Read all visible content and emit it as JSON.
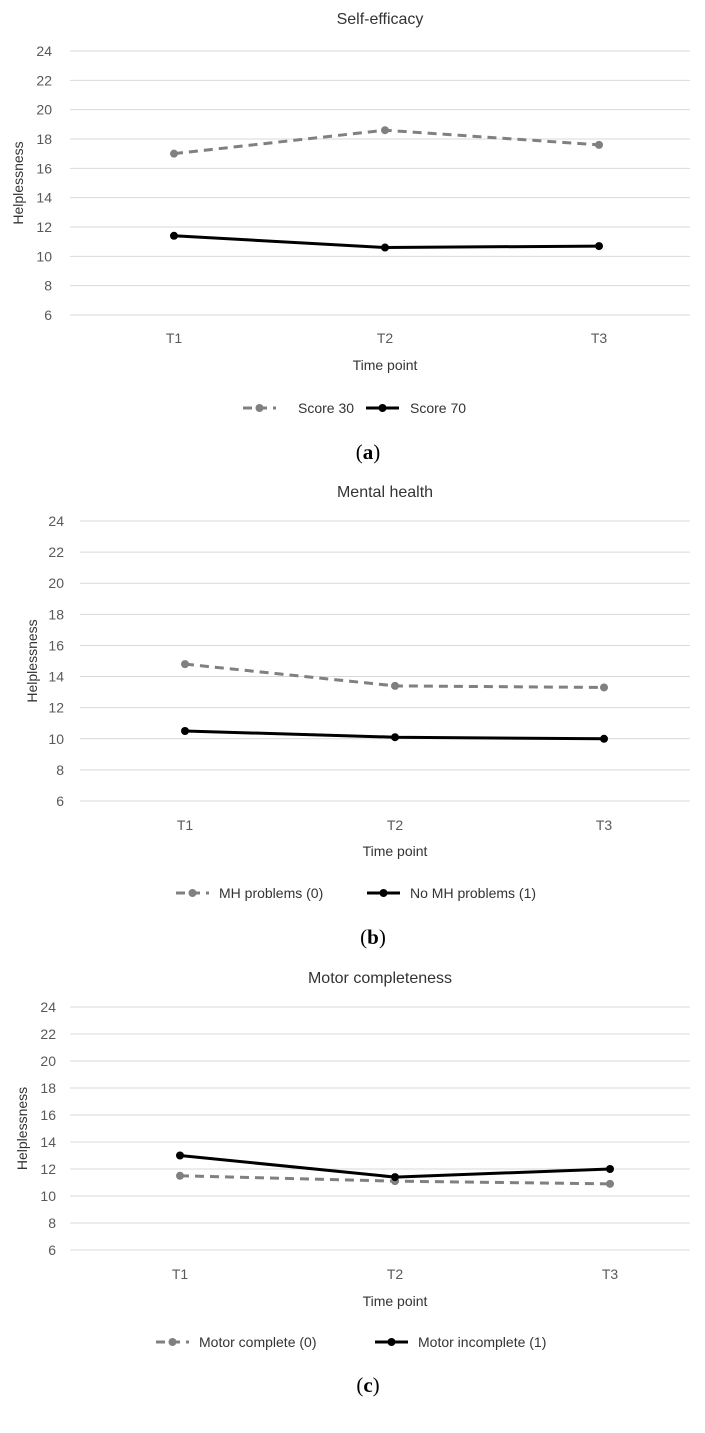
{
  "colors": {
    "dashed_series": "#808080",
    "solid_series": "#000000",
    "grid": "#d9d9d9"
  },
  "chart_data": [
    {
      "type": "line",
      "panel_label": "a",
      "title": "Self-efficacy",
      "xlabel": "Time point",
      "ylabel": "Helplessness",
      "categories": [
        "T1",
        "T2",
        "T3"
      ],
      "ylim": [
        6,
        24
      ],
      "yticks": [
        6,
        8,
        10,
        12,
        14,
        16,
        18,
        20,
        22,
        24
      ],
      "grid": true,
      "legend_position": "bottom",
      "series": [
        {
          "name": "Score 30",
          "style": "dashed",
          "color": "#808080",
          "values": [
            17.0,
            18.6,
            17.6
          ]
        },
        {
          "name": "Score 70",
          "style": "solid",
          "color": "#000000",
          "values": [
            11.4,
            10.6,
            10.7
          ]
        }
      ]
    },
    {
      "type": "line",
      "panel_label": "b",
      "title": "Mental health",
      "xlabel": "Time point",
      "ylabel": "Helplessness",
      "categories": [
        "T1",
        "T2",
        "T3"
      ],
      "ylim": [
        6,
        24
      ],
      "yticks": [
        6,
        8,
        10,
        12,
        14,
        16,
        18,
        20,
        22,
        24
      ],
      "grid": true,
      "legend_position": "bottom",
      "series": [
        {
          "name": "MH problems (0)",
          "style": "dashed",
          "color": "#808080",
          "values": [
            14.8,
            13.4,
            13.3
          ]
        },
        {
          "name": "No MH problems (1)",
          "style": "solid",
          "color": "#000000",
          "values": [
            10.5,
            10.1,
            10.0
          ]
        }
      ]
    },
    {
      "type": "line",
      "panel_label": "c",
      "title": "Motor completeness",
      "xlabel": "Time point",
      "ylabel": "Helplessness",
      "categories": [
        "T1",
        "T2",
        "T3"
      ],
      "ylim": [
        6,
        24
      ],
      "yticks": [
        6,
        8,
        10,
        12,
        14,
        16,
        18,
        20,
        22,
        24
      ],
      "grid": true,
      "legend_position": "bottom",
      "series": [
        {
          "name": "Motor complete (0)",
          "style": "dashed",
          "color": "#808080",
          "values": [
            11.5,
            11.1,
            10.9
          ]
        },
        {
          "name": "Motor incomplete (1)",
          "style": "solid",
          "color": "#000000",
          "values": [
            13.0,
            11.4,
            12.0
          ]
        }
      ]
    }
  ]
}
